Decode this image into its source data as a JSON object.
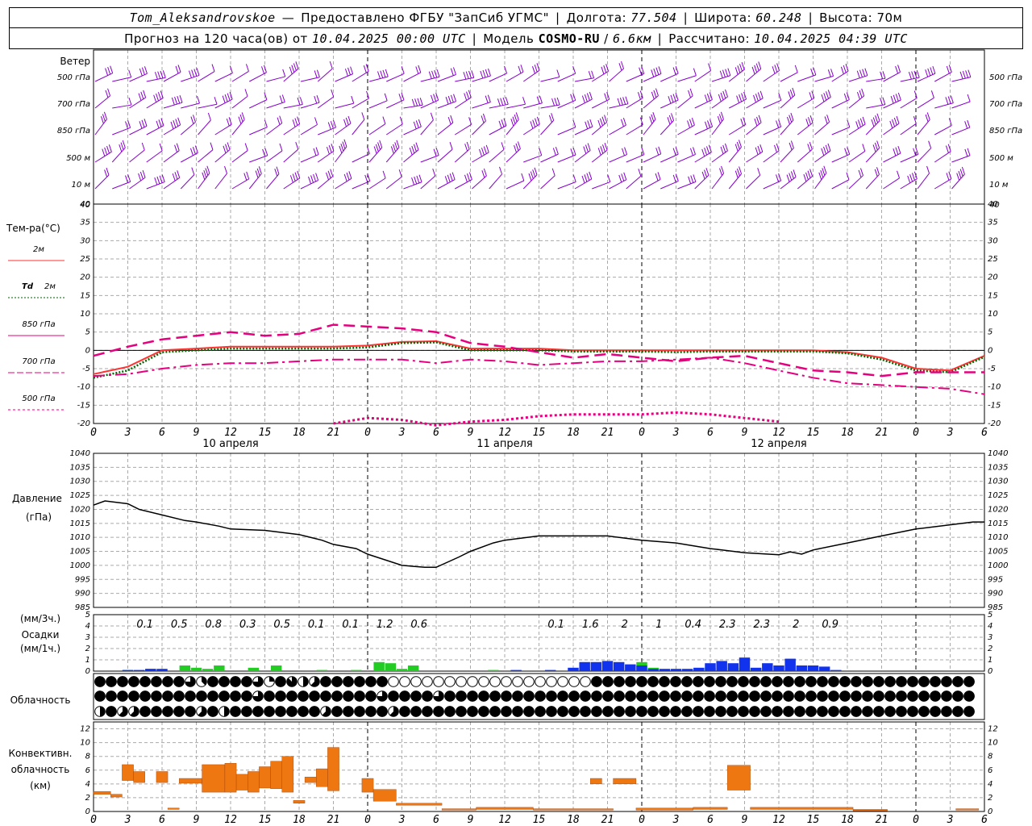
{
  "header": {
    "station": "Tom_Aleksandrovskoe",
    "dash": "—",
    "provider": "Предоставлено ФГБУ \"ЗапСиб УГМС\"",
    "lon_label": "Долгота:",
    "lon": "77.504",
    "lat_label": "Широта:",
    "lat": "60.248",
    "alt_label": "Высота:",
    "alt": "70м",
    "forecast_label": "Прогноз на 120 часа(ов) от",
    "forecast_start": "10.04.2025 00:00 UTC",
    "model_label": "Модель",
    "model_name": "COSMO-RU",
    "model_res": "6.6км",
    "calc_label": "Рассчитано:",
    "calc_time": "10.04.2025 04:39 UTC"
  },
  "x_axis": {
    "hour_ticks": [
      "0",
      "3",
      "6",
      "9",
      "12",
      "15",
      "18",
      "21",
      "0",
      "3",
      "6",
      "9",
      "12",
      "15",
      "18",
      "21",
      "0",
      "3",
      "6",
      "9",
      "12",
      "15",
      "18",
      "21",
      "0",
      "3",
      "6"
    ],
    "day_labels": [
      "10 апреля",
      "11 апреля",
      "12 апреля"
    ]
  },
  "colors": {
    "temp2m": "#ff3333",
    "td2m": "#006600",
    "t850": "#e6007e",
    "t700": "#e6007e",
    "t500": "#e6007e",
    "wind": "#8800cc",
    "precip_liquid": "#22cc22",
    "precip_solid": "#1133ee",
    "conv": "#ee7711"
  },
  "wind_panel": {
    "title": "Ветер",
    "levels": [
      "500 гПа",
      "700 гПа",
      "850 гПа",
      "500 м",
      "10 м"
    ],
    "axis_value": "40"
  },
  "chart_data": [
    {
      "type": "line",
      "title": "Тем-ра(°С)",
      "xlabel": "",
      "ylabel": "Тем-ра(°С)",
      "x_hours": [
        0,
        3,
        6,
        9,
        12,
        15,
        18,
        21,
        24,
        27,
        30,
        33,
        36,
        39,
        42,
        45,
        48,
        51,
        54,
        57,
        60,
        63,
        66,
        69,
        72,
        75,
        78
      ],
      "ylim": [
        -20,
        40
      ],
      "y_ticks": [
        "40",
        "35",
        "30",
        "25",
        "20",
        "15",
        "10",
        "5",
        "0",
        "-5",
        "-10",
        "-15",
        "-20"
      ],
      "series": [
        {
          "name": "2м",
          "style": "solid",
          "values": [
            -6.5,
            -4.5,
            0,
            0.5,
            1,
            1,
            1,
            1,
            1.3,
            2.3,
            2.5,
            0.5,
            0.5,
            0.5,
            0,
            0,
            0,
            0,
            0,
            0,
            0,
            0,
            -0.5,
            -2,
            -5,
            -5.5,
            -1.5
          ]
        },
        {
          "name": "Td 2м",
          "style": "dotted",
          "values": [
            -7.5,
            -5.5,
            -0.5,
            0,
            0.5,
            0.5,
            0.5,
            0.5,
            0.8,
            2,
            2.2,
            0,
            0,
            0,
            -0.3,
            -0.3,
            -0.3,
            -0.5,
            -0.3,
            -0.3,
            -0.3,
            -0.3,
            -0.8,
            -2.5,
            -5.5,
            -6,
            -1.8
          ]
        },
        {
          "name": "850 гПа",
          "style": "dash",
          "values": [
            -1.5,
            1,
            3,
            4,
            5,
            4,
            4.5,
            7,
            6.5,
            6,
            5,
            2,
            1,
            -0.5,
            -2,
            -1,
            -2,
            -3,
            -2,
            -1.5,
            -3.5,
            -5.5,
            -6,
            -7,
            -6,
            -6,
            -6
          ]
        },
        {
          "name": "700 гПа",
          "style": "dashdot",
          "values": [
            -7,
            -6.5,
            -5,
            -4,
            -3.5,
            -3.5,
            -3,
            -2.5,
            -2.5,
            -2.5,
            -3.5,
            -2.5,
            -3,
            -4,
            -3.5,
            -3,
            -3,
            -2.5,
            -2,
            -3.5,
            -5.5,
            -7.5,
            -9,
            -9.5,
            -10,
            -10.5,
            -12
          ]
        },
        {
          "name": "500 гПа",
          "style": "dotted",
          "values": [
            null,
            null,
            null,
            null,
            null,
            null,
            null,
            -20,
            -18.5,
            -19,
            -20.5,
            -19.5,
            -19,
            -18,
            -17.5,
            -17.5,
            -17.5,
            -17,
            -17.5,
            -18.5,
            -19.5,
            null,
            null,
            null,
            null,
            null,
            null
          ]
        }
      ]
    },
    {
      "type": "line",
      "title": "Давление",
      "ylabel": "(гПа)",
      "x_hours": [
        0,
        1,
        3,
        4,
        6,
        8,
        9,
        11,
        12,
        15,
        18,
        20,
        21,
        23,
        24,
        27,
        29,
        30,
        32,
        33,
        35,
        36,
        39,
        42,
        45,
        48,
        51,
        54,
        55,
        57,
        60,
        61,
        62,
        63,
        66,
        69,
        72,
        75,
        77,
        78
      ],
      "ylim": [
        985,
        1040
      ],
      "y_ticks": [
        "1040",
        "1035",
        "1030",
        "1025",
        "1020",
        "1015",
        "1010",
        "1005",
        "1000",
        "995",
        "990",
        "985"
      ],
      "series": [
        {
          "name": "",
          "values": [
            1021.5,
            1023,
            1022,
            1020,
            1018,
            1016,
            1015.5,
            1014,
            1013,
            1012.5,
            1011,
            1009,
            1007.5,
            1006,
            1004,
            1000,
            999.3,
            999.3,
            1003,
            1005,
            1008,
            1009,
            1010.5,
            1010.5,
            1010.5,
            1009,
            1008,
            1006,
            1005.5,
            1004.5,
            1003.8,
            1004.8,
            1004,
            1005.5,
            1008,
            1010.5,
            1013,
            1014.5,
            1015.5,
            1015.5
          ]
        }
      ]
    },
    {
      "type": "bar",
      "title": "Осадки",
      "ylabel": "(мм/3ч.) (мм/1ч.)",
      "ylim": [
        0,
        5
      ],
      "y_ticks": [
        "5",
        "4",
        "3",
        "2",
        "1",
        "0"
      ],
      "sums_3h": [
        {
          "x": 4.5,
          "label": "0.1"
        },
        {
          "x": 7.5,
          "label": "0.5"
        },
        {
          "x": 10.5,
          "label": "0.8"
        },
        {
          "x": 13.5,
          "label": "0.3"
        },
        {
          "x": 16.5,
          "label": "0.5"
        },
        {
          "x": 19.5,
          "label": "0.1"
        },
        {
          "x": 22.5,
          "label": "0.1"
        },
        {
          "x": 25.5,
          "label": "1.2"
        },
        {
          "x": 28.5,
          "label": "0.6"
        },
        {
          "x": 40.5,
          "label": "0.1"
        },
        {
          "x": 43.5,
          "label": "1.6"
        },
        {
          "x": 46.5,
          "label": "2"
        },
        {
          "x": 49.5,
          "label": "1"
        },
        {
          "x": 52.5,
          "label": "0.4"
        },
        {
          "x": 55.5,
          "label": "2.3"
        },
        {
          "x": 58.5,
          "label": "2.3"
        },
        {
          "x": 61.5,
          "label": "2"
        },
        {
          "x": 64.5,
          "label": "0.9"
        }
      ],
      "bars_liquid": [
        [
          3,
          0.1
        ],
        [
          5,
          0.2
        ],
        [
          6,
          0.1
        ],
        [
          8,
          0.5
        ],
        [
          9,
          0.3
        ],
        [
          10,
          0.2
        ],
        [
          11,
          0.5
        ],
        [
          14,
          0.3
        ],
        [
          16,
          0.5
        ],
        [
          20,
          0.1
        ],
        [
          23,
          0.1
        ],
        [
          25,
          0.8
        ],
        [
          26,
          0.7
        ],
        [
          27,
          0.2
        ],
        [
          28,
          0.5
        ],
        [
          35,
          0.1
        ],
        [
          43,
          0.2
        ],
        [
          46,
          0.2
        ],
        [
          48,
          0.8
        ],
        [
          49,
          0.3
        ],
        [
          54,
          0.3
        ],
        [
          56,
          0.3
        ],
        [
          57,
          0.3
        ],
        [
          58,
          0.2
        ]
      ],
      "bars_solid": [
        [
          3,
          0.1
        ],
        [
          4,
          0.1
        ],
        [
          5,
          0.2
        ],
        [
          6,
          0.2
        ],
        [
          37,
          0.1
        ],
        [
          40,
          0.1
        ],
        [
          42,
          0.3
        ],
        [
          43,
          0.8
        ],
        [
          44,
          0.8
        ],
        [
          45,
          0.9
        ],
        [
          46,
          0.8
        ],
        [
          47,
          0.6
        ],
        [
          48,
          0.5
        ],
        [
          49,
          0.2
        ],
        [
          50,
          0.2
        ],
        [
          51,
          0.2
        ],
        [
          52,
          0.2
        ],
        [
          53,
          0.3
        ],
        [
          54,
          0.7
        ],
        [
          55,
          0.9
        ],
        [
          56,
          0.7
        ],
        [
          57,
          1.2
        ],
        [
          58,
          0.3
        ],
        [
          59,
          0.7
        ],
        [
          60,
          0.5
        ],
        [
          61,
          1.1
        ],
        [
          62,
          0.5
        ],
        [
          63,
          0.5
        ],
        [
          64,
          0.4
        ],
        [
          65,
          0.1
        ]
      ]
    },
    {
      "type": "table",
      "title": "Облачность",
      "rows": [
        "high",
        "middle",
        "low"
      ],
      "levels": [
        "88888888638888628745888888000000000000000000888888888888888888888888888888888888888888888888888800000000000000000000000000000000000000000000000000000000000000000000000000000",
        "88888888888888688888888886888868888888888888888888888888888888888888888888888888800008888888888888888888888888888888888888888888888000000000000000000000000000000",
        "485588888584888888885888885888888888888888888888888888888888888888888888888888888888888888888888888888888888800002000000000000000000000000000000000000000000058888"
      ]
    },
    {
      "type": "bar",
      "title": "Конвективн. облачность",
      "ylabel": "(км)",
      "ylim": [
        0,
        13
      ],
      "y_ticks": [
        "12",
        "10",
        "8",
        "6",
        "4",
        "2",
        "0"
      ],
      "layers": [
        [
          0,
          1.5,
          2.5,
          2.9
        ],
        [
          1.5,
          2.5,
          2.1,
          2.5
        ],
        [
          2.5,
          3.5,
          4.5,
          6.8
        ],
        [
          3.5,
          4.5,
          4.2,
          5.8
        ],
        [
          5.5,
          6.5,
          4.2,
          5.8
        ],
        [
          6.5,
          7.5,
          0.3,
          0.5
        ],
        [
          7.5,
          9.5,
          4.1,
          4.8
        ],
        [
          9.5,
          11.5,
          2.8,
          6.8
        ],
        [
          11.5,
          12.5,
          2.8,
          7
        ],
        [
          12.5,
          13.5,
          3.1,
          5.4
        ],
        [
          13.5,
          14.5,
          2.8,
          5.8
        ],
        [
          14.5,
          15.5,
          3.4,
          6.5
        ],
        [
          15.5,
          16.5,
          3.3,
          7.3
        ],
        [
          16.5,
          17.5,
          2.8,
          8
        ],
        [
          17.5,
          18.5,
          1.2,
          1.6
        ],
        [
          18.5,
          19.5,
          4.2,
          5
        ],
        [
          19.5,
          20.5,
          3.6,
          6.2
        ],
        [
          20.5,
          21.5,
          3,
          9.3
        ],
        [
          23.5,
          24.5,
          2.8,
          4.8
        ],
        [
          24.5,
          26.5,
          1.5,
          3.2
        ],
        [
          26.5,
          30.5,
          0.9,
          1.2
        ],
        [
          30.5,
          33.5,
          0.2,
          0.4
        ],
        [
          33.5,
          38.5,
          0.3,
          0.6
        ],
        [
          38.5,
          45.5,
          0.2,
          0.4
        ],
        [
          43.5,
          44.5,
          4,
          4.8
        ],
        [
          45.5,
          47.5,
          4,
          4.8
        ],
        [
          47.5,
          52.5,
          0.2,
          0.5
        ],
        [
          52.5,
          55.5,
          0.3,
          0.6
        ],
        [
          55.5,
          57.5,
          3.1,
          6.7
        ],
        [
          57.5,
          66.5,
          0.3,
          0.6
        ],
        [
          66.5,
          69.5,
          0.1,
          0.3
        ],
        [
          75.5,
          77.5,
          0.2,
          0.4
        ]
      ]
    }
  ],
  "labels": {
    "temp_title": "Тем-ра(°С)",
    "leg_2m": "2м",
    "leg_td_a": "Td",
    "leg_td_b": "2м",
    "leg_850": "850 гПа",
    "leg_700": "700 гПа",
    "leg_500": "500 гПа",
    "pres_title": "Давление",
    "pres_unit": "(гПа)",
    "precip_unit3": "(мм/3ч.)",
    "precip_title": "Осадки",
    "precip_unit1": "(мм/1ч.)",
    "cloud_title": "Облачность",
    "conv_title1": "Конвективн.",
    "conv_title2": "облачность",
    "conv_unit": "(км)"
  }
}
